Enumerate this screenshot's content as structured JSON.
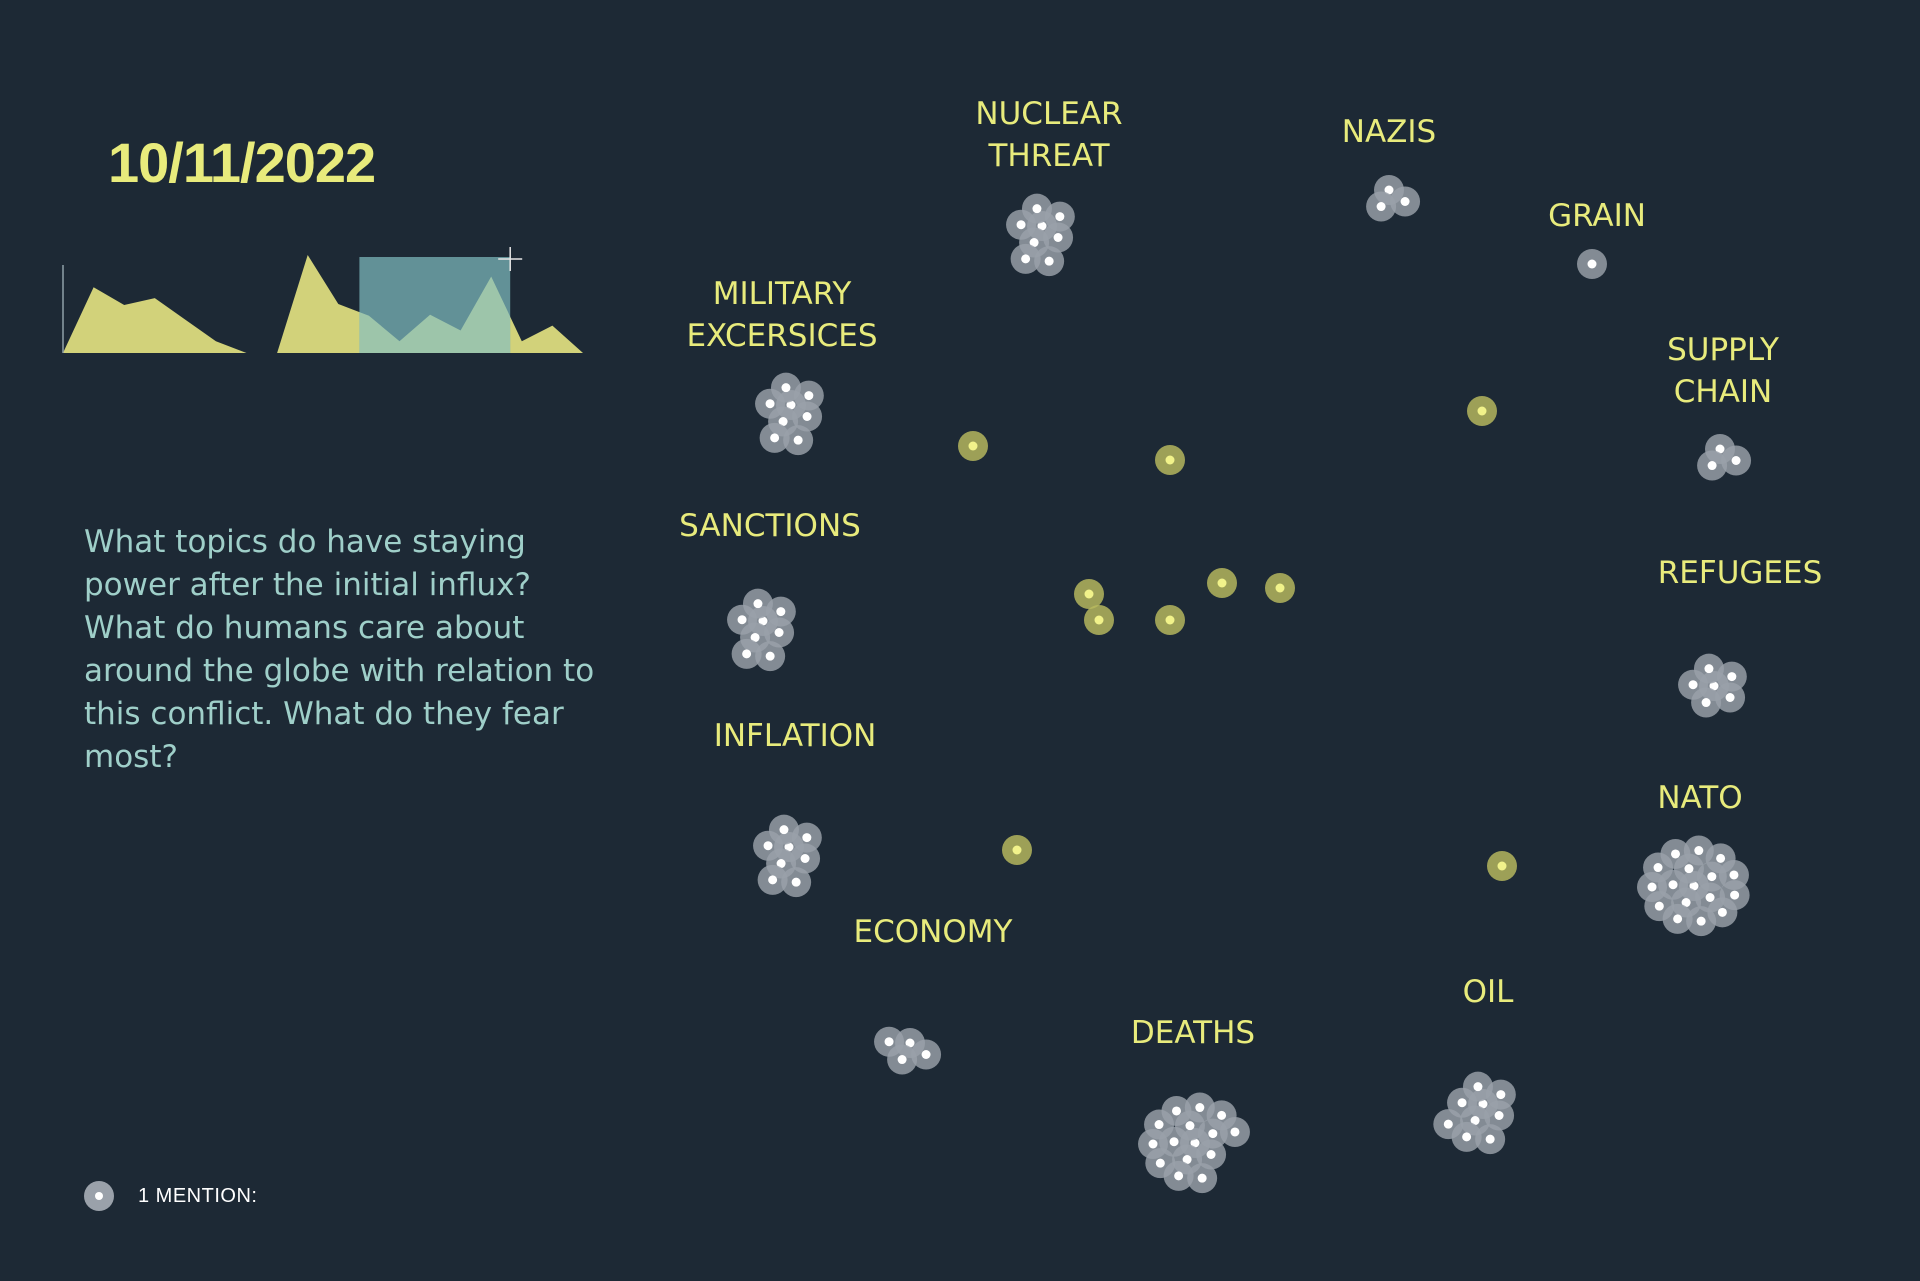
{
  "header": {
    "date": "10/11/2022"
  },
  "question": "What topics do have staying power after the initial influx? What do humans care about around the globe with relation to this conflict. What do they fear most?",
  "legend": {
    "label": "1 MENTION:",
    "icon": "mention-dot-icon"
  },
  "colors": {
    "background": "#1d2935",
    "accent": "#e8eb7c",
    "question_text": "#9fcfc9",
    "mention_dot": "#9aa1aa",
    "unassigned_dot": "#b9bb5f",
    "timeline_fill": "#d2d27a",
    "timeline_window": "#6fa3a8"
  },
  "chart_data": [
    {
      "type": "area",
      "title": "",
      "xlabel": "",
      "ylabel": "",
      "note": "Mention volume timeline (no labeled axes); highlighted window shows the current period",
      "values": [
        0,
        0.67,
        0.49,
        0.56,
        0.34,
        0.12,
        0,
        0,
        1.0,
        0.5,
        0.38,
        0.12,
        0.39,
        0.23,
        0.78,
        0.12,
        0.28,
        0
      ],
      "highlight_range": [
        0.57,
        0.86
      ]
    },
    {
      "type": "scatter",
      "title": "",
      "note": "Each dot = 1 mention; dots cluster around topic labels",
      "topics": [
        {
          "label": "NUCLEAR THREAT",
          "lines": [
            "NUCLEAR",
            "THREAT"
          ],
          "mentions": 8
        },
        {
          "label": "NAZIS",
          "lines": [
            "NAZIS"
          ],
          "mentions": 3
        },
        {
          "label": "GRAIN",
          "lines": [
            "GRAIN"
          ],
          "mentions": 1
        },
        {
          "label": "MILITARY EXCERSICES",
          "lines": [
            "MILITARY",
            "EXCERSICES"
          ],
          "mentions": 8
        },
        {
          "label": "SUPPLY CHAIN",
          "lines": [
            "SUPPLY",
            "CHAIN"
          ],
          "mentions": 3
        },
        {
          "label": "SANCTIONS",
          "lines": [
            "SANCTIONS"
          ],
          "mentions": 8
        },
        {
          "label": "REFUGEES",
          "lines": [
            "REFUGEES"
          ],
          "mentions": 6
        },
        {
          "label": "INFLATION",
          "lines": [
            "INFLATION"
          ],
          "mentions": 8
        },
        {
          "label": "NATO",
          "lines": [
            "NATO"
          ],
          "mentions": 17
        },
        {
          "label": "ECONOMY",
          "lines": [
            "ECONOMY"
          ],
          "mentions": 4
        },
        {
          "label": "OIL",
          "lines": [
            "OIL"
          ],
          "mentions": 9
        },
        {
          "label": "DEATHS",
          "lines": [
            "DEATHS"
          ],
          "mentions": 15
        }
      ],
      "unassigned_mentions": 10
    }
  ]
}
